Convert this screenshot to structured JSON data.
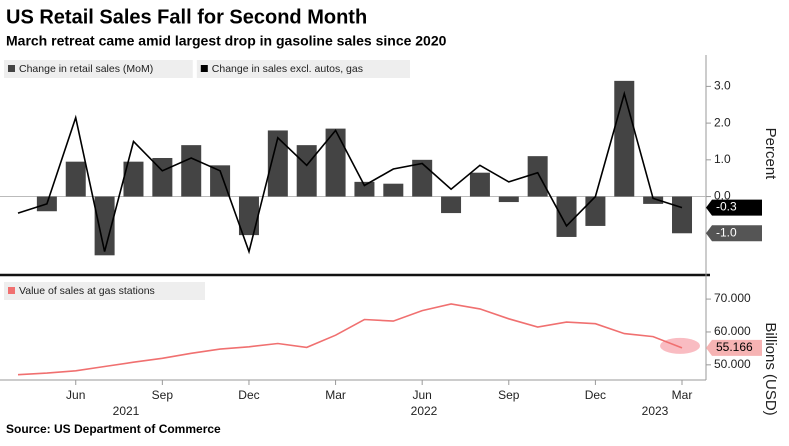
{
  "title": "US Retail Sales Fall for Second Month",
  "subtitle": "March retreat came amid largest drop in gasoline sales since 2020",
  "source": "Source: US Department of Commerce",
  "chart_data": [
    {
      "type": "bar",
      "axis_title": "Percent",
      "ylim": [
        -2.0,
        3.8
      ],
      "yticks": [
        {
          "value": 3,
          "label": "3.0"
        },
        {
          "value": 2,
          "label": "2.0"
        },
        {
          "value": 1,
          "label": "1.0"
        },
        {
          "value": 0,
          "label": "0.0"
        },
        {
          "value": -1,
          "label": "-1.0"
        }
      ],
      "series": [
        {
          "name": "Change in retail sales (MoM)",
          "type": "bar",
          "color": "#444444",
          "values": [
            null,
            -0.4,
            0.95,
            -1.6,
            0.95,
            1.05,
            1.4,
            0.85,
            -1.05,
            1.8,
            1.4,
            1.85,
            0.4,
            0.35,
            1.0,
            -0.45,
            0.65,
            -0.15,
            1.1,
            -1.1,
            -0.8,
            3.15,
            -0.2,
            -1.0
          ],
          "value_labels": [
            null,
            null,
            null,
            null,
            null,
            null,
            null,
            null,
            null,
            null,
            null,
            null,
            null,
            null,
            null,
            null,
            null,
            null,
            null,
            null,
            null,
            null,
            null,
            "-1.0"
          ]
        },
        {
          "name": "Change in sales excl. autos, gas",
          "type": "line",
          "color": "#000000",
          "values": [
            -0.45,
            -0.2,
            2.15,
            -1.5,
            1.5,
            0.7,
            1.05,
            0.7,
            -1.5,
            1.6,
            0.85,
            1.8,
            0.3,
            0.75,
            0.9,
            0.2,
            0.85,
            0.4,
            0.65,
            -0.8,
            0.0,
            2.8,
            -0.05,
            -0.3
          ],
          "value_labels": [
            null,
            null,
            null,
            null,
            null,
            null,
            null,
            null,
            null,
            null,
            null,
            null,
            null,
            null,
            null,
            null,
            null,
            null,
            null,
            null,
            null,
            null,
            null,
            "-0.3"
          ]
        }
      ]
    },
    {
      "type": "line",
      "axis_title": "Billions (USD)",
      "categories": [
        null,
        null,
        "Jun",
        null,
        null,
        "Sep",
        null,
        null,
        "Dec",
        null,
        null,
        "Mar",
        null,
        null,
        "Jun",
        null,
        null,
        "Sep",
        null,
        null,
        "Dec",
        null,
        null,
        "Mar"
      ],
      "years": [
        "2021",
        "2022",
        "2023"
      ],
      "ylim": [
        46,
        75.8
      ],
      "yticks": [
        {
          "value": 70,
          "label": "70.000"
        },
        {
          "value": 60,
          "label": "60.000"
        },
        {
          "value": 50,
          "label": "50.000"
        }
      ],
      "series": [
        {
          "name": "Value of sales at gas stations",
          "color": "#f07070",
          "values": [
            47.0,
            47.5,
            48.2,
            49.5,
            50.8,
            52.0,
            53.5,
            54.8,
            55.5,
            56.5,
            55.3,
            59.0,
            63.8,
            63.3,
            66.5,
            68.5,
            67.0,
            64.0,
            61.5,
            63.0,
            62.5,
            59.5,
            58.6,
            55.166
          ],
          "value_labels": [
            null,
            null,
            null,
            null,
            null,
            null,
            null,
            null,
            null,
            null,
            null,
            null,
            null,
            null,
            null,
            null,
            null,
            null,
            null,
            null,
            null,
            null,
            null,
            "55.166"
          ]
        }
      ]
    }
  ]
}
